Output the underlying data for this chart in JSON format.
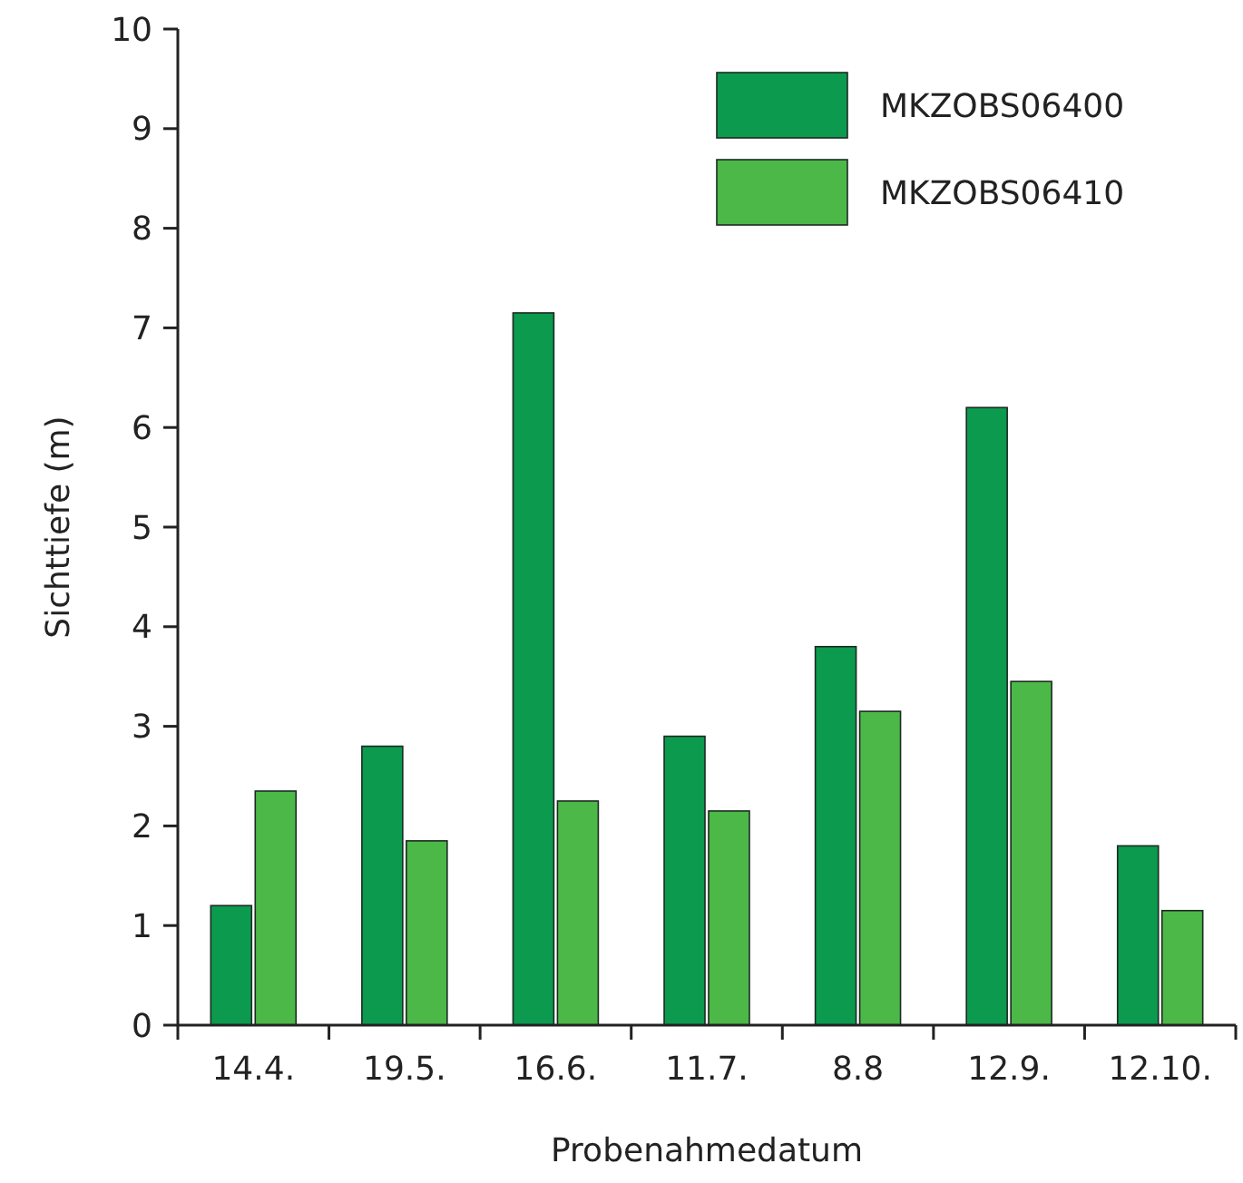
{
  "chart_data": {
    "type": "bar",
    "xlabel": "Probenahmedatum",
    "ylabel": "Sichttiefe (m)",
    "categories": [
      "14.4.",
      "19.5.",
      "16.6.",
      "11.7.",
      "8.8",
      "12.9.",
      "12.10."
    ],
    "series": [
      {
        "name": "MKZOBS06400",
        "color": "#0b9a4e",
        "values": [
          1.2,
          2.8,
          7.15,
          2.9,
          3.8,
          6.2,
          1.8
        ]
      },
      {
        "name": "MKZOBS06410",
        "color": "#4cb848",
        "values": [
          2.35,
          1.85,
          2.25,
          2.15,
          3.15,
          3.45,
          1.15
        ]
      }
    ],
    "ylim": [
      0,
      10
    ],
    "yticks": [
      0,
      1,
      2,
      3,
      4,
      5,
      6,
      7,
      8,
      9,
      10
    ],
    "grid": false,
    "legend": "top right"
  }
}
